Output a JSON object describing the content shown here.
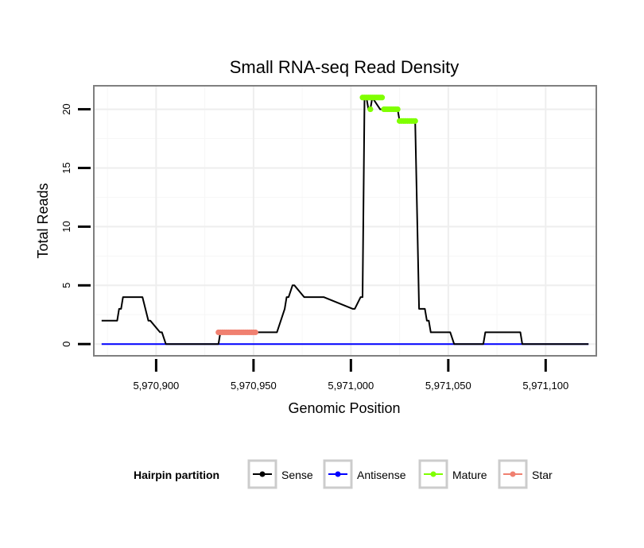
{
  "chart_data": {
    "type": "line",
    "title": "Small RNA-seq Read Density",
    "xlabel": "Genomic Position",
    "ylabel": "Total Reads",
    "xlim": [
      5970868,
      5971126
    ],
    "ylim": [
      -1,
      22
    ],
    "xticks": [
      5970900,
      5970950,
      5971000,
      5971050,
      5971100
    ],
    "xtick_labels": [
      "5,970,900",
      "5,970,950",
      "5,971,000",
      "5,971,050",
      "5,971,100"
    ],
    "yticks": [
      0,
      5,
      10,
      15,
      20
    ],
    "ytick_labels": [
      "0",
      "5",
      "10",
      "15",
      "20"
    ],
    "grid": true,
    "legend": {
      "title": "Hairpin partition",
      "position": "bottom",
      "entries": [
        "Sense",
        "Antisense",
        "Mature",
        "Star"
      ]
    },
    "series": [
      {
        "name": "Sense",
        "color": "#000000",
        "style": "line",
        "x": [
          5970872,
          5970879,
          5970880,
          5970881,
          5970882,
          5970883,
          5970892,
          5970893,
          5970896,
          5970897,
          5970902,
          5970903,
          5970905,
          5970906,
          5970932,
          5970933,
          5970954,
          5970955,
          5970961,
          5970962,
          5970966,
          5970967,
          5970968,
          5970970,
          5970971,
          5970976,
          5970977,
          5970977,
          5970979,
          5970984,
          5970985,
          5970986,
          5971001,
          5971002,
          5971005,
          5971006,
          5971007,
          5971008,
          5971009,
          5971010,
          5971011,
          5971011,
          5971015,
          5971016,
          5971017,
          5971018,
          5971023,
          5971024,
          5971025,
          5971026,
          5971032,
          5971033,
          5971035,
          5971036,
          5971038,
          5971039,
          5971040,
          5971041,
          5971045,
          5971046,
          5971050,
          5971051,
          5971053,
          5971054,
          5971068,
          5971069,
          5971087,
          5971088,
          5971122
        ],
        "y": [
          2,
          2,
          2,
          3,
          3,
          4,
          4,
          4,
          2,
          2,
          1,
          1,
          0,
          0,
          0,
          1,
          1,
          1,
          1,
          1,
          3,
          4,
          4,
          5,
          5,
          4,
          4,
          4,
          4,
          4,
          4,
          4,
          3,
          3,
          4,
          4,
          21,
          21,
          20,
          20,
          21,
          21,
          20,
          20,
          20,
          20,
          20,
          20,
          19,
          19,
          19,
          19,
          3,
          3,
          3,
          2,
          2,
          1,
          1,
          1,
          1,
          1,
          0,
          0,
          0,
          1,
          1,
          0,
          0
        ]
      },
      {
        "name": "Antisense",
        "color": "#0000ff",
        "style": "line",
        "x": [
          5970872,
          5971122
        ],
        "y": [
          0,
          0
        ]
      },
      {
        "name": "Mature",
        "color": "#7fff00",
        "style": "points",
        "x": [
          5971006,
          5971007,
          5971008,
          5971009,
          5971010,
          5971011,
          5971012,
          5971013,
          5971014,
          5971015,
          5971016,
          5971017,
          5971018,
          5971019,
          5971020,
          5971021,
          5971022,
          5971023,
          5971024,
          5971025,
          5971026,
          5971027,
          5971028,
          5971029,
          5971030,
          5971031,
          5971032,
          5971033,
          5971010
        ],
        "y": [
          21,
          21,
          21,
          21,
          21,
          21,
          21,
          21,
          21,
          21,
          21,
          20,
          20,
          20,
          20,
          20,
          20,
          20,
          20,
          19,
          19,
          19,
          19,
          19,
          19,
          19,
          19,
          19,
          20
        ]
      },
      {
        "name": "Star",
        "color": "#f08070",
        "style": "points",
        "x": [
          5970932,
          5970933,
          5970934,
          5970935,
          5970936,
          5970937,
          5970938,
          5970939,
          5970940,
          5970941,
          5970942,
          5970943,
          5970944,
          5970945,
          5970946,
          5970947,
          5970948,
          5970949,
          5970950,
          5970951
        ],
        "y": [
          1,
          1,
          1,
          1,
          1,
          1,
          1,
          1,
          1,
          1,
          1,
          1,
          1,
          1,
          1,
          1,
          1,
          1,
          1,
          1
        ]
      }
    ]
  }
}
